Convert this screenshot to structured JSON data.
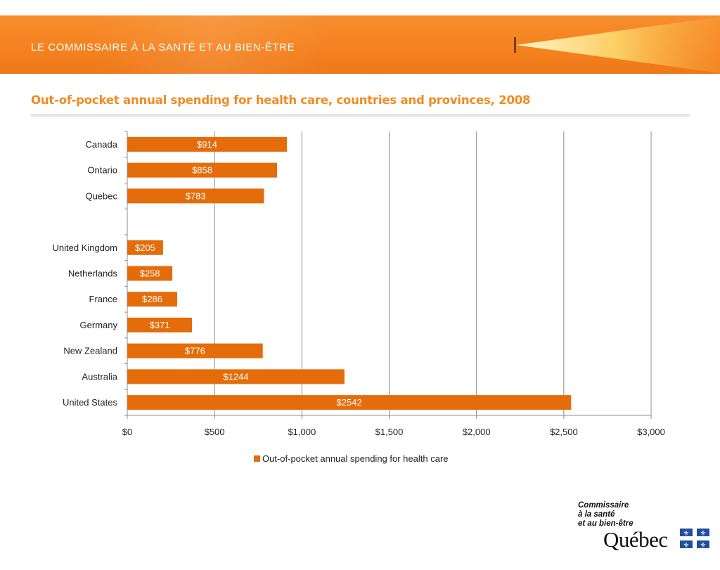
{
  "header": {
    "banner_title": "LE COMMISSAIRE À LA SANTÉ ET AU BIEN-ÊTRE",
    "slide_title": "Out-of-pocket  annual spending for health care, countries and provinces, 2008"
  },
  "chart_data": {
    "type": "bar",
    "orientation": "horizontal",
    "categories": [
      "Canada",
      "Ontario",
      "Quebec",
      "",
      "United Kingdom",
      "Netherlands",
      "France",
      "Germany",
      "New Zealand",
      "Australia",
      "United States"
    ],
    "series": [
      {
        "name": "Out-of-pocket  annual spending for health care",
        "values": [
          914,
          858,
          783,
          null,
          205,
          258,
          286,
          371,
          776,
          1244,
          2542
        ],
        "data_labels": [
          "$914",
          "$858",
          "$783",
          "",
          "$205",
          "$258",
          "$286",
          "$371",
          "$776",
          "$1244",
          "$2542"
        ]
      }
    ],
    "xlim": [
      0,
      3000
    ],
    "x_ticks": [
      0,
      500,
      1000,
      1500,
      2000,
      2500,
      3000
    ],
    "x_tick_labels": [
      "$0",
      "$500",
      "$1,000",
      "$1,500",
      "$2,000",
      "$2,500",
      "$3,000"
    ],
    "grid": "vertical major gridlines",
    "legend_position": "bottom",
    "colors": {
      "bar": "#e46c0a",
      "grid": "#8c8c8c"
    }
  },
  "logo": {
    "lines": [
      "Commissaire",
      "à la santé",
      "et au bien-être"
    ],
    "wordmark": "Québec"
  }
}
